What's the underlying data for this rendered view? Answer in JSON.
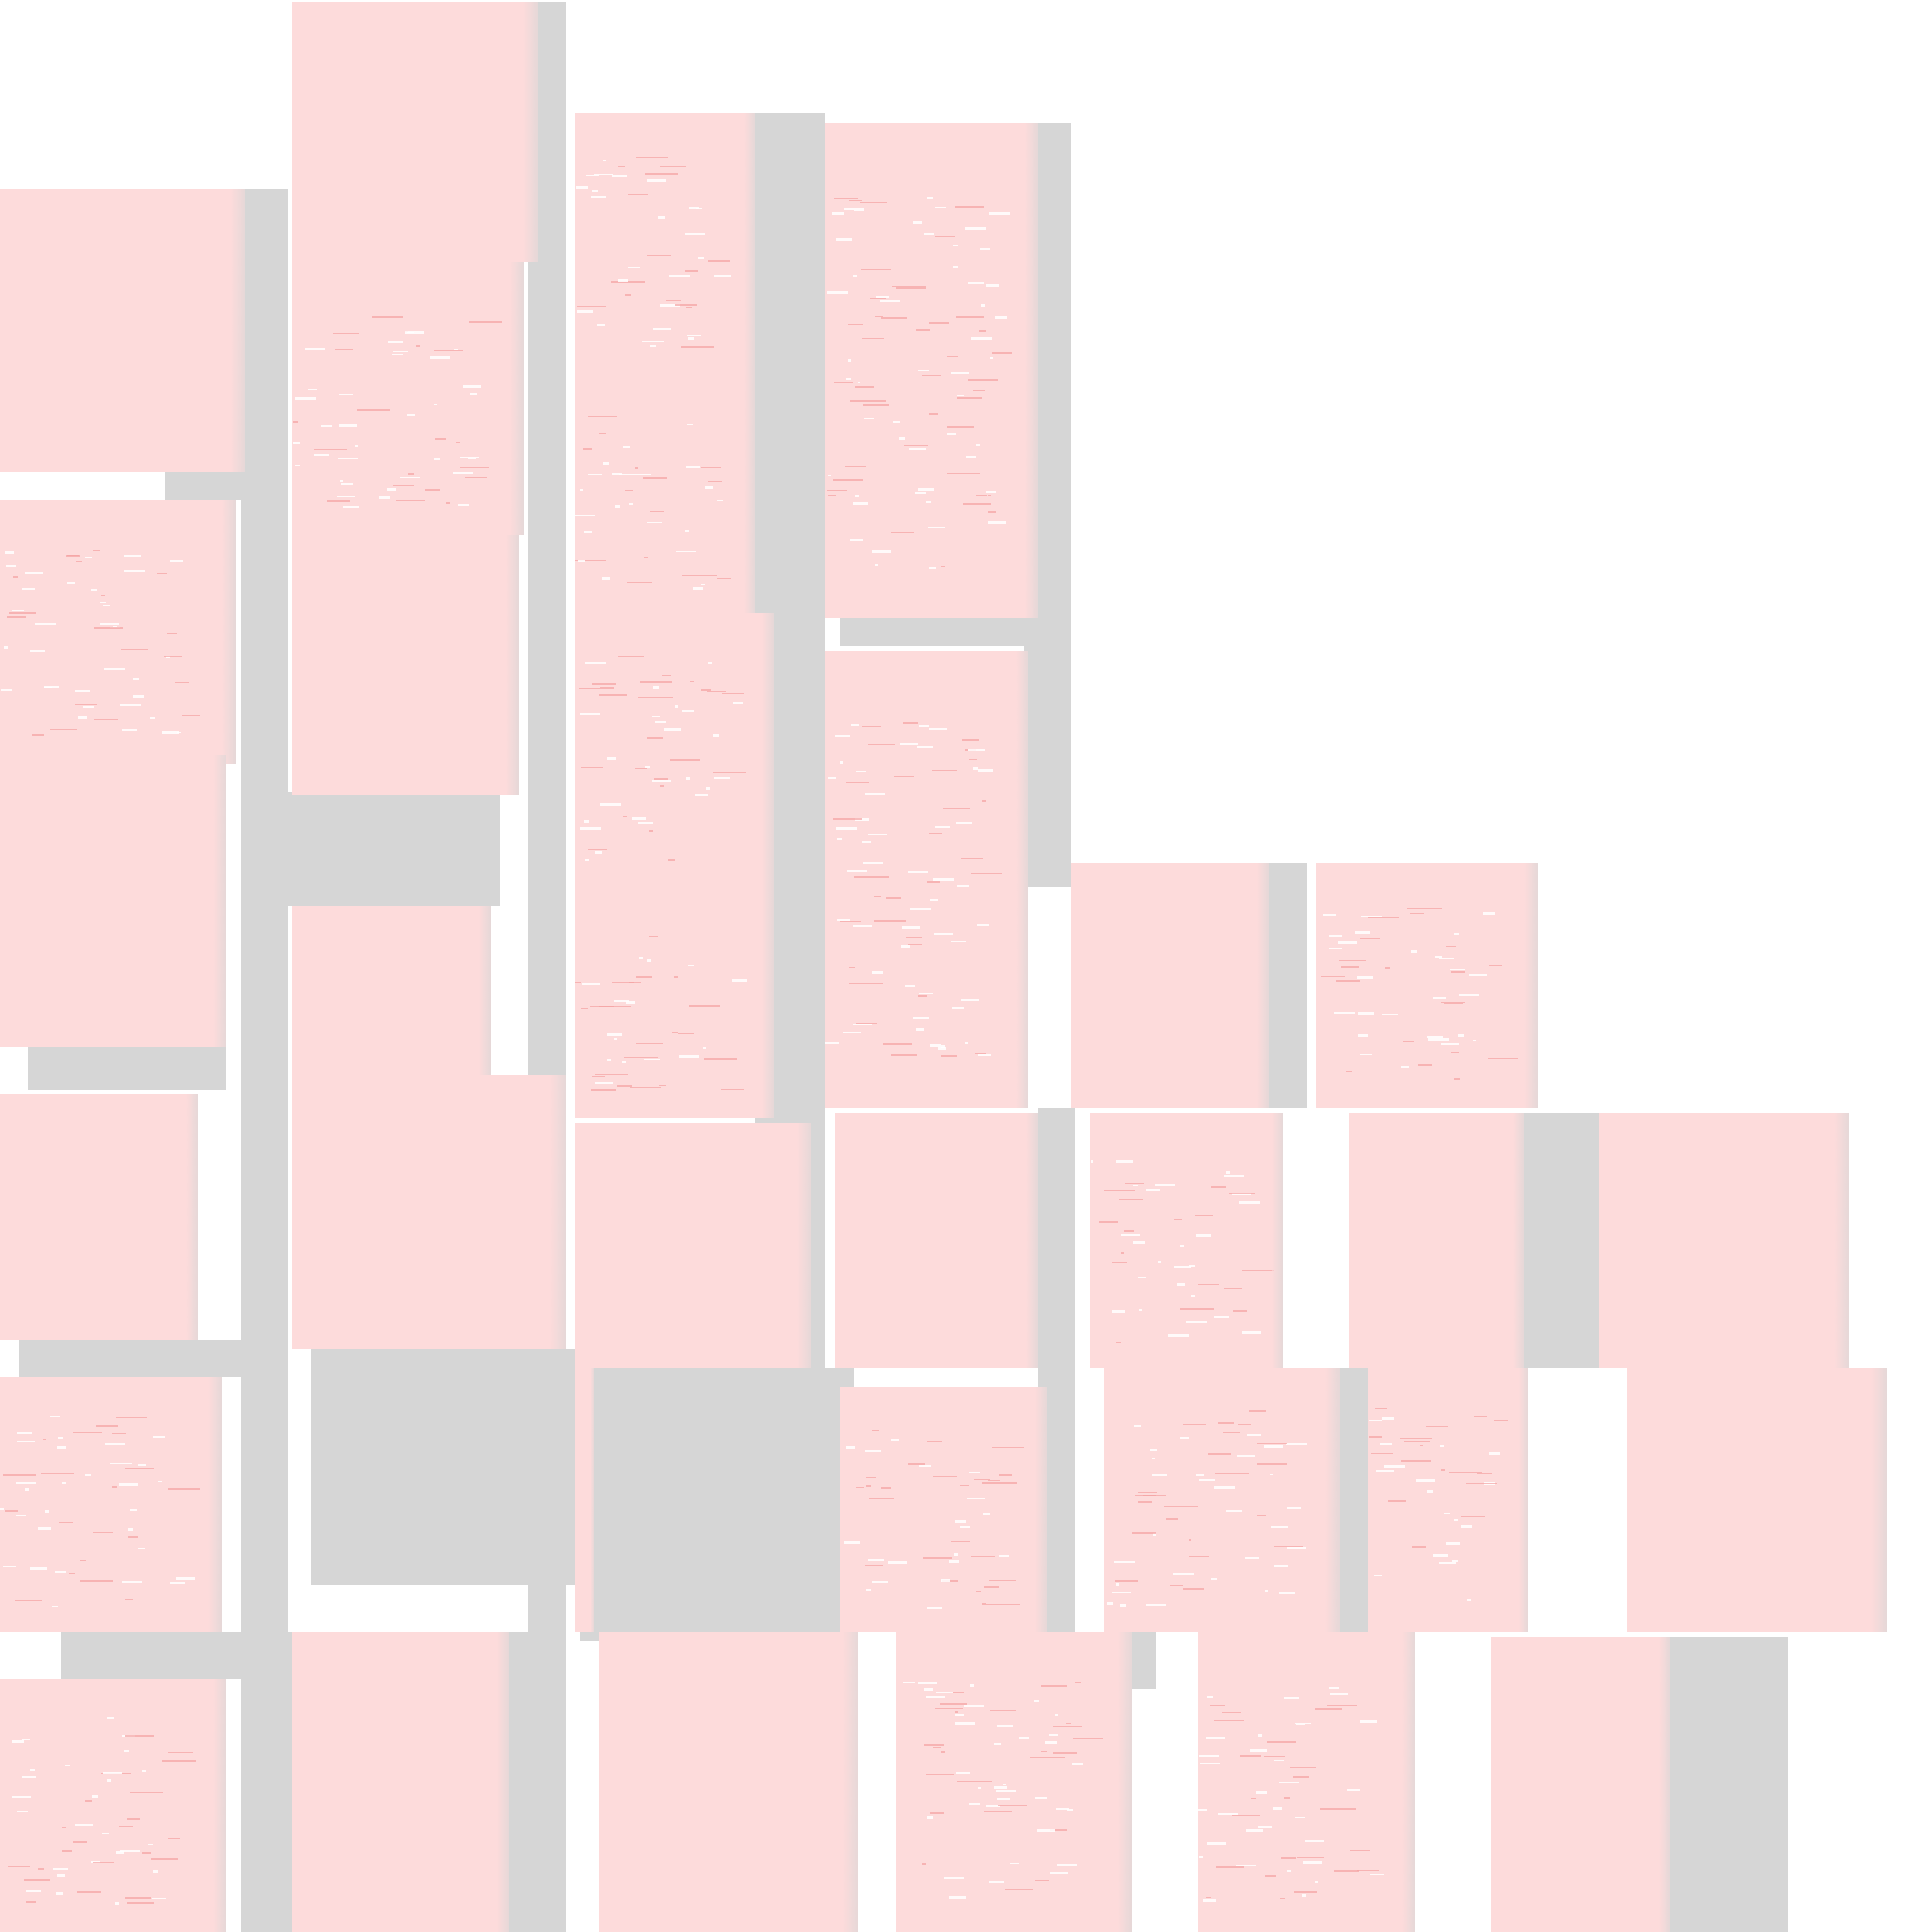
{
  "palette": {
    "background": "#ffffff",
    "tile_fill": "#fddbdb",
    "gutter_gray": "#d6d6d6",
    "mark_red": "#f3a3a3",
    "speck_white": "#ffffff"
  },
  "mosaic": {
    "tile_count": 30
  }
}
